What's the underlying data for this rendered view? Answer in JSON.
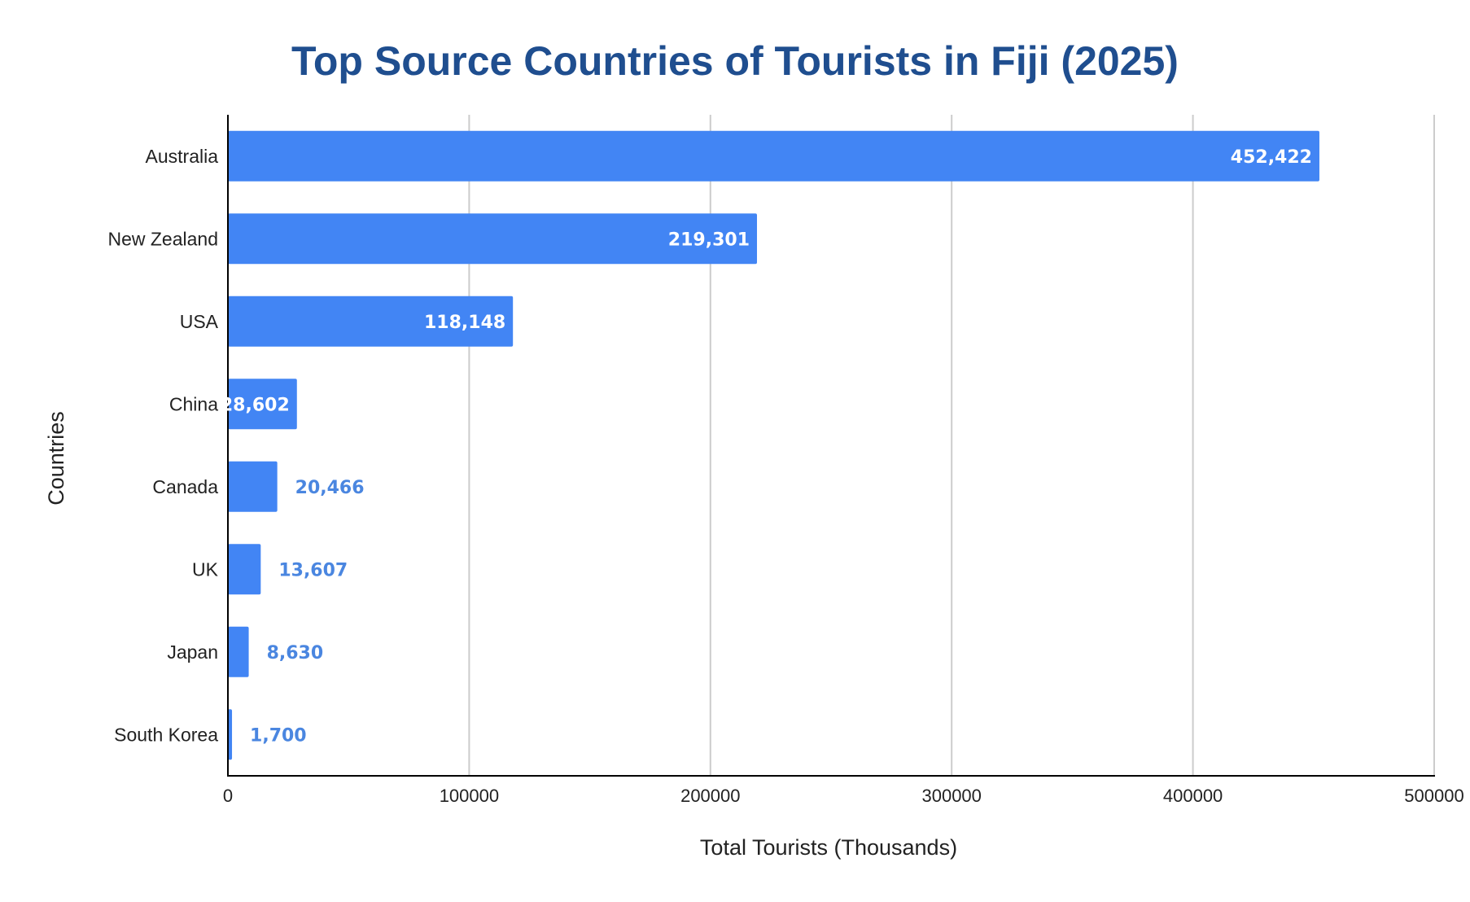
{
  "colors": {
    "title": "#1f4e8f",
    "bar": "#4285f4",
    "grid": "#cccccc",
    "axis": "#000000",
    "label_inside": "#ffffff",
    "label_outside": "#4a86e0"
  },
  "chart_data": {
    "type": "bar",
    "orientation": "horizontal",
    "title": "Top Source Countries of Tourists in Fiji (2025)",
    "xlabel": "Total Tourists (Thousands)",
    "ylabel": "Countries",
    "categories": [
      "Australia",
      "New Zealand",
      "USA",
      "China",
      "Canada",
      "UK",
      "Japan",
      "South Korea"
    ],
    "values": [
      452422,
      219301,
      118148,
      28602,
      20466,
      13607,
      8630,
      1700
    ],
    "data_labels": [
      "452,422",
      "219,301",
      "118,148",
      "28,602",
      "20,466",
      "13,607",
      "8,630",
      "1,700"
    ],
    "xlim": [
      0,
      500000
    ],
    "xticks": [
      0,
      100000,
      200000,
      300000,
      400000,
      500000
    ],
    "xtick_labels": [
      "0",
      "100000",
      "200000",
      "300000",
      "400000",
      "500000"
    ],
    "grid": "vertical",
    "legend": "none"
  }
}
